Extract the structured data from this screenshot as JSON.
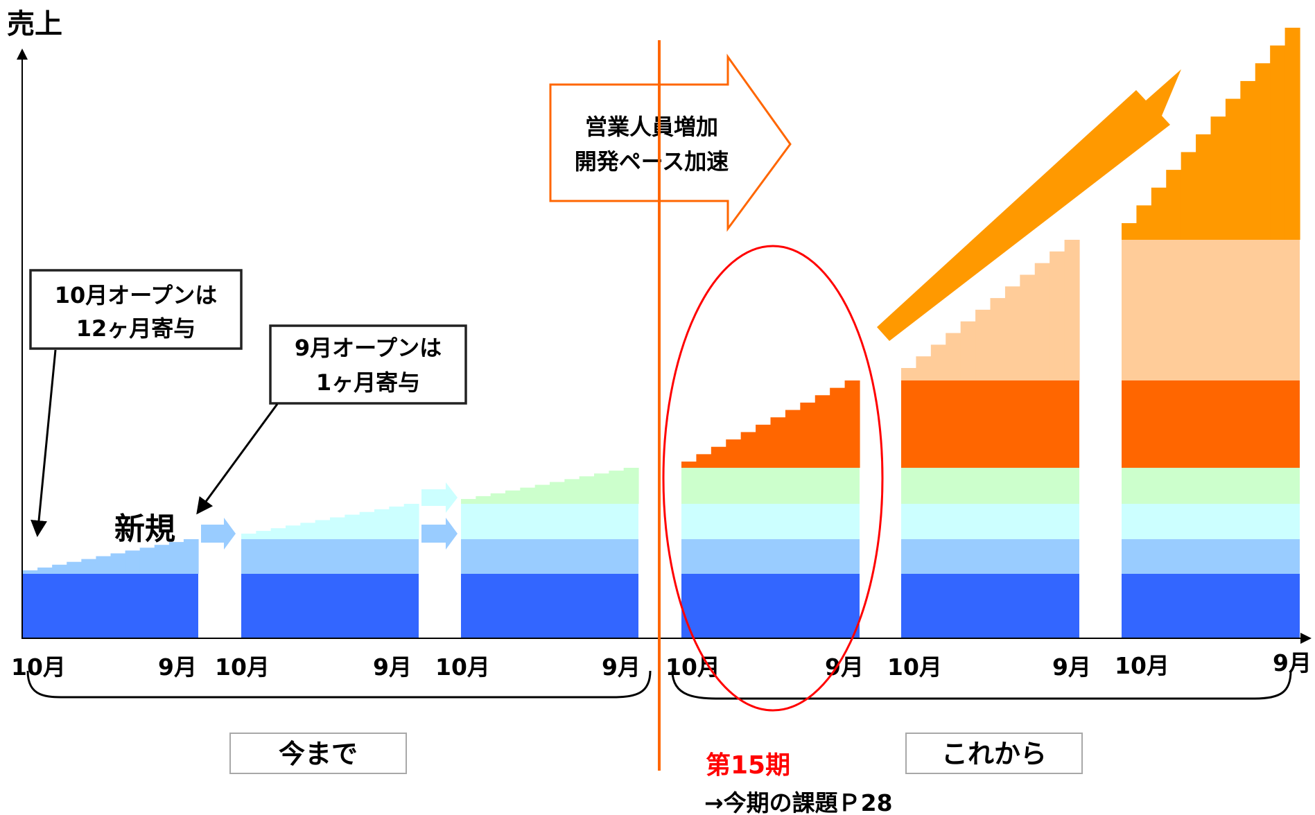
{
  "y_axis_label": "売上",
  "colors": {
    "base_blue": "#3366ff",
    "light_blue": "#99ccff",
    "cyan": "#ccffff",
    "green": "#ccffcc",
    "dark_orange": "#ff6600",
    "peach": "#ffcc99",
    "orange": "#ff9900",
    "red_text": "#ff0000",
    "divider": "#ff6600"
  },
  "periods": [
    {
      "start_label": "10月",
      "end_label": "9月"
    },
    {
      "start_label": "10月",
      "end_label": "9月"
    },
    {
      "start_label": "10月",
      "end_label": "9月"
    },
    {
      "start_label": "10月",
      "end_label": "9月"
    },
    {
      "start_label": "10月",
      "end_label": "9月"
    },
    {
      "start_label": "10月",
      "end_label": "9月"
    }
  ],
  "callouts": {
    "october_open_line1": "10月オープンは",
    "october_open_line2": "12ヶ月寄与",
    "september_open_line1": "9月オープンは",
    "september_open_line2": "1ヶ月寄与",
    "new_label": "新規"
  },
  "big_arrow": {
    "line1": "営業人員増加",
    "line2": "開発ペース加速"
  },
  "sections": {
    "past": "今まで",
    "future": "これから"
  },
  "highlight": {
    "period_label": "第15期",
    "note": "→今期の課題Ｐ28"
  }
}
